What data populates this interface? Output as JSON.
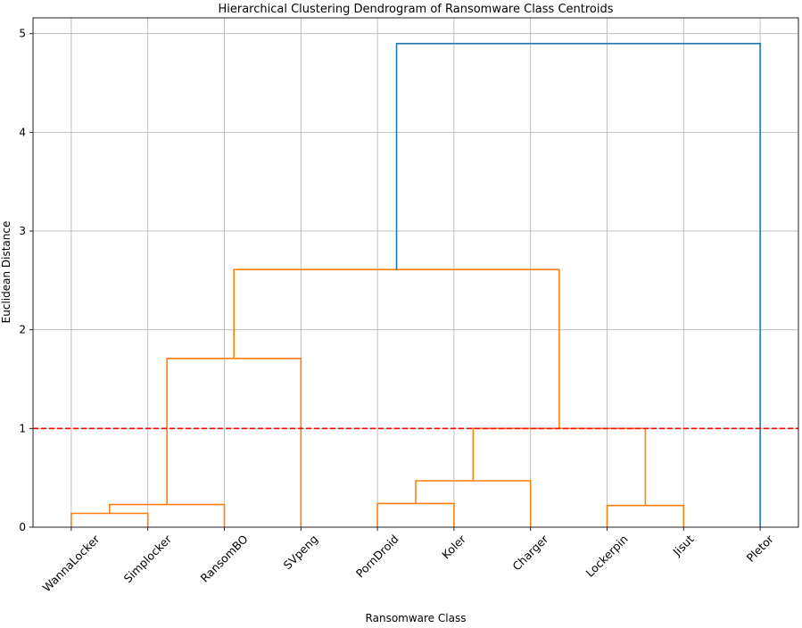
{
  "chart_data": {
    "type": "dendrogram",
    "title": "Hierarchical Clustering Dendrogram of Ransomware Class Centroids",
    "xlabel": "Ransomware Class",
    "ylabel": "Euclidean Distance",
    "ylim": [
      0,
      5.16
    ],
    "yticks": [
      "0",
      "1",
      "2",
      "3",
      "4",
      "5"
    ],
    "grid": true,
    "leaves": [
      "WannaLocker",
      "Simplocker",
      "RansomBO",
      "SVpeng",
      "PornDroid",
      "Koler",
      "Charger",
      "Lockerpin",
      "Jisut",
      "Pletor"
    ],
    "merges": [
      {
        "a": "WannaLocker",
        "b": "Simplocker",
        "height": 0.14,
        "color": "#ff7f0e"
      },
      {
        "a": "m0",
        "b": "RansomBO",
        "height": 0.23,
        "color": "#ff7f0e"
      },
      {
        "a": "m1",
        "b": "SVpeng",
        "height": 1.71,
        "color": "#ff7f0e"
      },
      {
        "a": "PornDroid",
        "b": "Koler",
        "height": 0.24,
        "color": "#ff7f0e"
      },
      {
        "a": "m3",
        "b": "Charger",
        "height": 0.47,
        "color": "#ff7f0e"
      },
      {
        "a": "Lockerpin",
        "b": "Jisut",
        "height": 0.22,
        "color": "#ff7f0e"
      },
      {
        "a": "m4",
        "b": "m5",
        "height": 1.0,
        "color": "#ff7f0e"
      },
      {
        "a": "m2",
        "b": "m6",
        "height": 2.61,
        "color": "#ff7f0e"
      },
      {
        "a": "m7",
        "b": "Pletor",
        "height": 4.9,
        "color": "#1f77b4"
      }
    ],
    "threshold": {
      "value": 1.0,
      "color": "#ff0000",
      "style": "dashed"
    }
  }
}
